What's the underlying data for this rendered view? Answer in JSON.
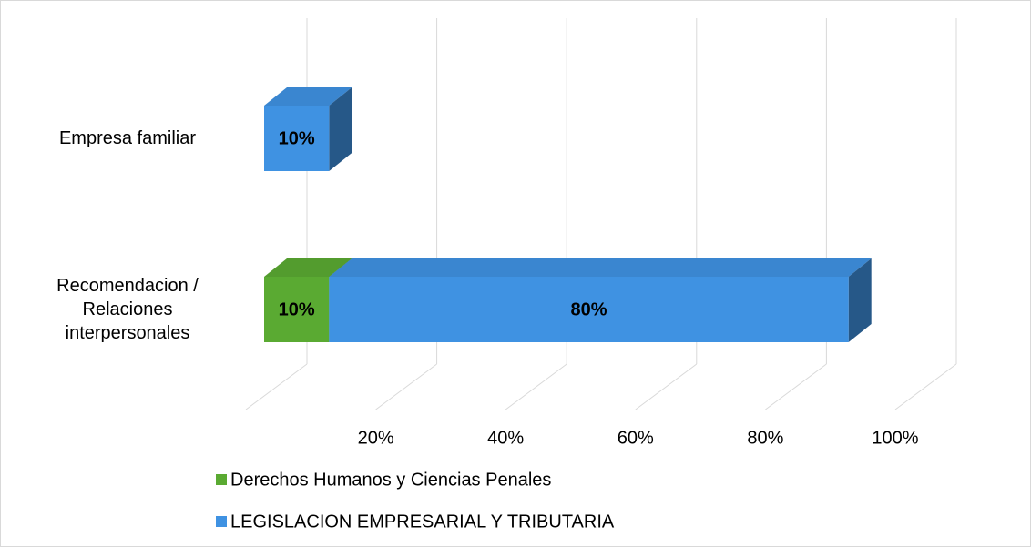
{
  "chart_data": {
    "type": "bar3d_stacked_horizontal",
    "categories": [
      "Empresa familiar",
      "Recomendacion / Relaciones interpersonales"
    ],
    "series": [
      {
        "name": "Derechos Humanos y Ciencias Penales",
        "color": "#5aaa32",
        "values": [
          null,
          10
        ],
        "value_labels": [
          null,
          "10%"
        ]
      },
      {
        "name": "LEGISLACION EMPRESARIAL Y TRIBUTARIA",
        "color": "#3f92e2",
        "values": [
          10,
          80
        ],
        "value_labels": [
          "10%",
          "80%"
        ]
      }
    ],
    "xlim": [
      0,
      100
    ],
    "xticks": [
      {
        "value": 20,
        "label": "20%"
      },
      {
        "value": 40,
        "label": "40%"
      },
      {
        "value": 60,
        "label": "60%"
      },
      {
        "value": 80,
        "label": "80%"
      },
      {
        "value": 100,
        "label": "100%"
      }
    ],
    "grid": true,
    "legend": "bottom"
  }
}
